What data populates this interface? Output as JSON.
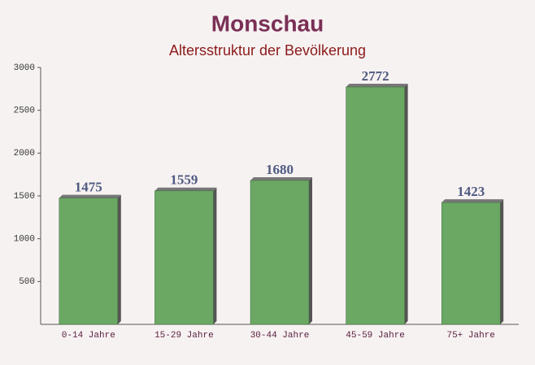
{
  "chart_data": {
    "type": "bar",
    "title": "Monschau",
    "subtitle": "Altersstruktur der Bevölkerung",
    "categories": [
      "0-14 Jahre",
      "15-29 Jahre",
      "30-44 Jahre",
      "45-59 Jahre",
      "75+ Jahre"
    ],
    "values": [
      1475,
      1559,
      1680,
      2772,
      1423
    ],
    "color": "#6aa864",
    "ylim": [
      0,
      3000
    ],
    "yticks": [
      500,
      1000,
      1500,
      2000,
      2500,
      3000
    ]
  }
}
